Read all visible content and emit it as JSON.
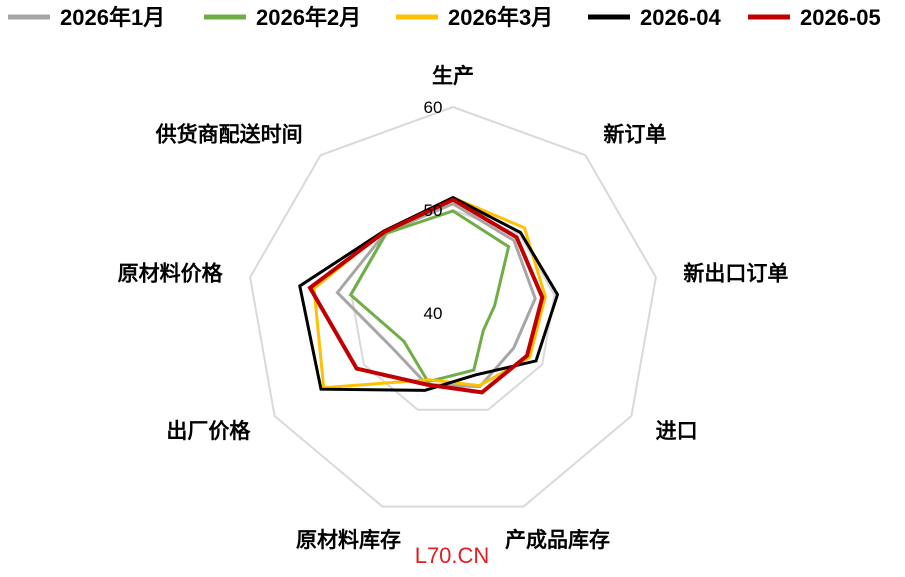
{
  "chart_data": {
    "type": "radar",
    "categories": [
      "生产",
      "新订单",
      "新出口订单",
      "进口",
      "产成品库存",
      "原材料库存",
      "出厂价格",
      "原材料价格",
      "供货商配送时间"
    ],
    "rlim": [
      40,
      60
    ],
    "ticks": [
      "40",
      "50",
      "60"
    ],
    "grid": true,
    "legend_position": "top",
    "series": [
      {
        "name": "2026年1月",
        "color": "#a6a6a6",
        "values": [
          50.6,
          49.2,
          48.1,
          46.8,
          47.6,
          47.4,
          46.8,
          51.4,
          50.2
        ]
      },
      {
        "name": "2026年2月",
        "color": "#70ad47",
        "values": [
          49.9,
          48.4,
          44.1,
          43.4,
          45.9,
          47.1,
          45.5,
          50.1,
          50.1
        ]
      },
      {
        "name": "2026年3月",
        "color": "#ffc000",
        "values": [
          51.2,
          50.8,
          49.1,
          48.6,
          47.5,
          46.9,
          54.5,
          53.7,
          50.4
        ]
      },
      {
        "name": "2026-04",
        "color": "#000000",
        "values": [
          51.2,
          50.2,
          50.3,
          49.3,
          46.4,
          48.0,
          54.8,
          55.1,
          50.4
        ]
      },
      {
        "name": "2026-05",
        "color": "#c00000",
        "values": [
          51.0,
          49.6,
          48.8,
          48.3,
          48.2,
          47.4,
          50.8,
          54.1,
          50.3
        ]
      }
    ],
    "watermark": "L70.CN"
  }
}
